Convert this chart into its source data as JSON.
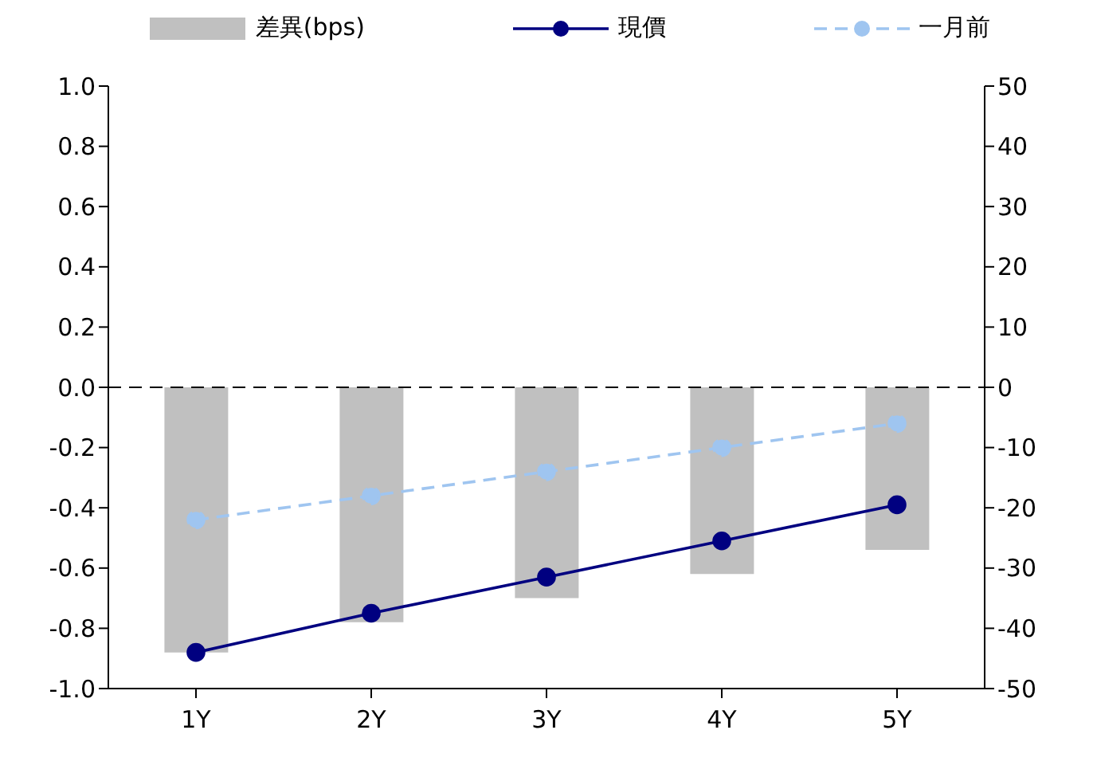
{
  "chart_data": {
    "type": "line",
    "categories": [
      "1Y",
      "2Y",
      "3Y",
      "4Y",
      "5Y"
    ],
    "series": [
      {
        "name": "差異(bps)",
        "type": "bar",
        "axis": "y2",
        "color": "#c0c0c0",
        "values": [
          -44,
          -39,
          -35,
          -31,
          -27
        ]
      },
      {
        "name": "現價",
        "color": "#000080",
        "line_style": "solid",
        "values": [
          -0.88,
          -0.75,
          -0.63,
          -0.51,
          -0.39
        ]
      },
      {
        "name": "一月前",
        "color": "#9fc5f0",
        "line_style": "dashed",
        "values": [
          -0.44,
          -0.36,
          -0.28,
          -0.2,
          -0.12
        ]
      }
    ],
    "ylim": [
      -1,
      1
    ],
    "yticks": [
      {
        "value": -1,
        "label": "-1.0"
      },
      -0.8,
      -0.6,
      -0.4,
      -0.2,
      {
        "value": 0,
        "label": "0.0"
      },
      0.2,
      0.4,
      0.6,
      0.8,
      {
        "value": 1,
        "label": "1.0"
      }
    ],
    "y2lim": [
      -50,
      50
    ],
    "y2ticks": [
      -50,
      -40,
      -30,
      -20,
      -10,
      0,
      10,
      20,
      30,
      40,
      50
    ],
    "ref_lines": [
      {
        "axis": "y",
        "value": 0,
        "color": "#000000",
        "line_style": "dashed"
      }
    ],
    "marker": "circle",
    "grid": false,
    "legend": "top"
  }
}
